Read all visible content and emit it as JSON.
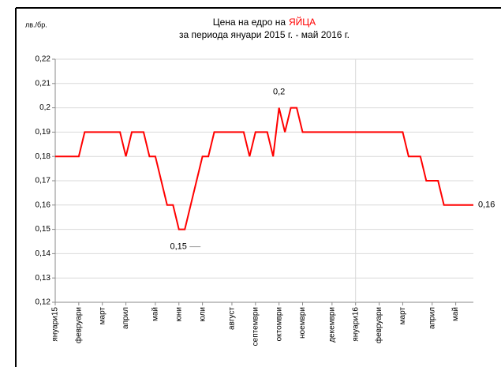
{
  "chart_data": {
    "type": "line",
    "title": "Цена на едро на",
    "title_highlight": "ЯЙЦА",
    "subtitle": "за периода януари 2015 г. - май 2016 г.",
    "y_label": "лв./бр.",
    "categories": [
      "януари15",
      null,
      null,
      null,
      "февруари",
      null,
      null,
      null,
      "март",
      null,
      null,
      null,
      "април",
      null,
      null,
      null,
      null,
      "май",
      null,
      null,
      null,
      "юни",
      null,
      null,
      null,
      "юли",
      null,
      null,
      null,
      null,
      "август",
      null,
      null,
      null,
      "септември",
      null,
      null,
      null,
      "октомври",
      null,
      null,
      null,
      "ноември",
      null,
      null,
      null,
      null,
      "декември",
      null,
      null,
      null,
      "януари16",
      null,
      null,
      null,
      "февруари",
      null,
      null,
      null,
      "март",
      null,
      null,
      null,
      null,
      "април",
      null,
      null,
      null,
      "май",
      null,
      null,
      null
    ],
    "series": [
      {
        "name": "ЯЙЦА",
        "color": "#ff0000",
        "values": [
          0.18,
          0.18,
          0.18,
          0.18,
          0.18,
          0.19,
          0.19,
          0.19,
          0.19,
          0.19,
          0.19,
          0.19,
          0.18,
          0.19,
          0.19,
          0.19,
          0.18,
          0.18,
          0.17,
          0.16,
          0.16,
          0.15,
          0.15,
          0.16,
          0.17,
          0.18,
          0.18,
          0.19,
          0.19,
          0.19,
          0.19,
          0.19,
          0.19,
          0.18,
          0.19,
          0.19,
          0.19,
          0.18,
          0.2,
          0.19,
          0.2,
          0.2,
          0.19,
          0.19,
          0.19,
          0.19,
          0.19,
          0.19,
          0.19,
          0.19,
          0.19,
          0.19,
          0.19,
          0.19,
          0.19,
          0.19,
          0.19,
          0.19,
          0.19,
          0.19,
          0.18,
          0.18,
          0.18,
          0.17,
          0.17,
          0.17,
          0.16,
          0.16,
          0.16,
          0.16,
          0.16,
          0.16
        ],
        "value_labels": [
          null,
          null,
          null,
          null,
          null,
          null,
          null,
          null,
          null,
          null,
          null,
          null,
          null,
          null,
          null,
          null,
          null,
          null,
          null,
          null,
          null,
          null,
          "0,15",
          null,
          null,
          null,
          null,
          null,
          null,
          null,
          null,
          null,
          null,
          null,
          null,
          null,
          null,
          null,
          "0,2",
          null,
          null,
          null,
          null,
          null,
          null,
          null,
          null,
          null,
          null,
          null,
          null,
          null,
          null,
          null,
          null,
          null,
          null,
          null,
          null,
          null,
          null,
          null,
          null,
          null,
          null,
          null,
          null,
          null,
          null,
          null,
          null,
          "0,16"
        ]
      }
    ],
    "ylim": [
      0.12,
      0.22
    ],
    "yticks": [
      {
        "value": 0.12,
        "label": "0,12"
      },
      {
        "value": 0.13,
        "label": "0,13"
      },
      {
        "value": 0.14,
        "label": "0,14"
      },
      {
        "value": 0.15,
        "label": "0,15"
      },
      {
        "value": 0.16,
        "label": "0,16"
      },
      {
        "value": 0.17,
        "label": "0,17"
      },
      {
        "value": 0.18,
        "label": "0,18"
      },
      {
        "value": 0.19,
        "label": "0,19"
      },
      {
        "value": 0.2,
        "label": "0,2"
      },
      {
        "value": 0.21,
        "label": "0,21"
      },
      {
        "value": 0.22,
        "label": "0,22"
      }
    ],
    "grid": true
  }
}
